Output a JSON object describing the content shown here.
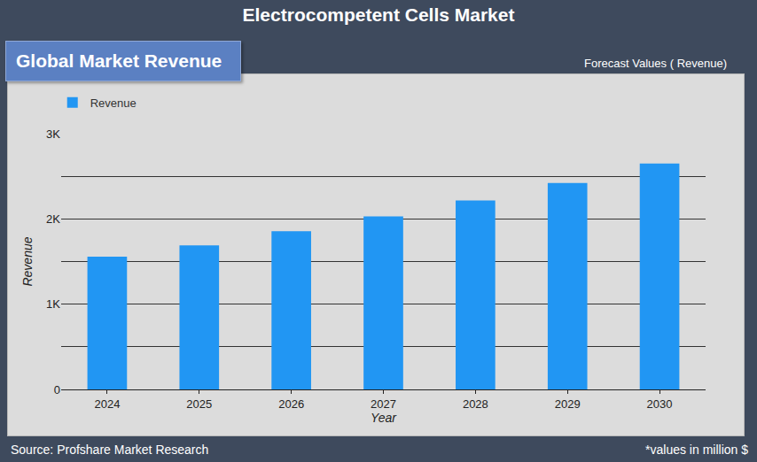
{
  "chart_data": {
    "type": "bar",
    "title": "Electrocompetent Cells Market",
    "subtitle": "Global Market Revenue",
    "annotations": [
      "Forecast Values ( Revenue)",
      "Source: Profshare Market Research",
      "*values in million $"
    ],
    "x_label": "Year",
    "y_label": "Revenue",
    "categories": [
      "2024",
      "2025",
      "2026",
      "2027",
      "2028",
      "2029",
      "2030"
    ],
    "series": [
      {
        "name": "Revenue",
        "color": "#2196f3",
        "values": [
          1557,
          1690,
          1856,
          2030,
          2216,
          2420,
          2650
        ]
      }
    ],
    "ylim": [
      0,
      3000
    ],
    "yticks": [
      0,
      {
        "value": 1000,
        "label": "1K"
      },
      {
        "value": 2000,
        "label": "2K"
      },
      {
        "value": 3000,
        "label": "3K"
      }
    ],
    "grid": true,
    "legend": "top-left"
  }
}
